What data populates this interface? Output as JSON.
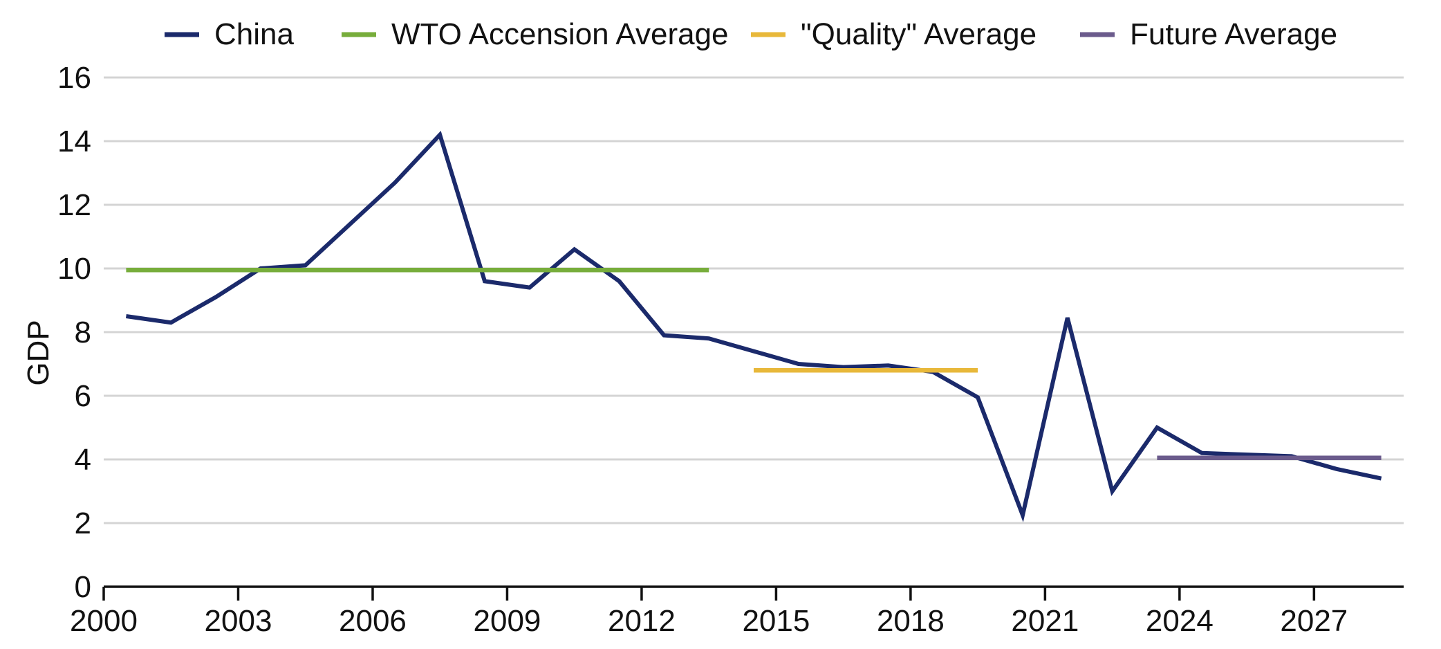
{
  "chart_data": {
    "type": "line",
    "title": "",
    "xlabel": "",
    "ylabel": "GDP",
    "xlim": [
      2000,
      2029
    ],
    "ylim": [
      0,
      16
    ],
    "x_ticks": [
      2000,
      2003,
      2006,
      2009,
      2012,
      2015,
      2018,
      2021,
      2024,
      2027
    ],
    "y_ticks": [
      0,
      2,
      4,
      6,
      8,
      10,
      12,
      14,
      16
    ],
    "grid": "horizontal",
    "legend_position": "top",
    "series": [
      {
        "name": "China",
        "color": "#1b2a6b",
        "x": [
          2000.5,
          2001.5,
          2002.5,
          2003.5,
          2004.5,
          2005.5,
          2006.5,
          2007.5,
          2008.5,
          2009.5,
          2010.5,
          2011.5,
          2012.5,
          2013.5,
          2014.5,
          2015.5,
          2016.5,
          2017.5,
          2018.5,
          2019.5,
          2020.5,
          2021.5,
          2022.5,
          2023.5,
          2024.5,
          2025.5,
          2026.5,
          2027.5,
          2028.5
        ],
        "values": [
          8.5,
          8.3,
          9.1,
          10.0,
          10.1,
          11.4,
          12.7,
          14.2,
          9.6,
          9.4,
          10.6,
          9.6,
          7.9,
          7.8,
          7.4,
          7.0,
          6.9,
          6.95,
          6.75,
          5.95,
          2.25,
          8.45,
          3.0,
          5.0,
          4.2,
          4.15,
          4.1,
          3.7,
          3.4
        ]
      },
      {
        "name": "WTO Accension Average",
        "color": "#77ad3b",
        "x": [
          2000.5,
          2013.5
        ],
        "values": [
          9.95,
          9.95
        ]
      },
      {
        "name": "\"Quality\" Average",
        "color": "#e8b83a",
        "x": [
          2014.5,
          2019.5
        ],
        "values": [
          6.8,
          6.8
        ]
      },
      {
        "name": "Future Average",
        "color": "#6b5b8c",
        "x": [
          2023.5,
          2028.5
        ],
        "values": [
          4.05,
          4.05
        ]
      }
    ]
  }
}
